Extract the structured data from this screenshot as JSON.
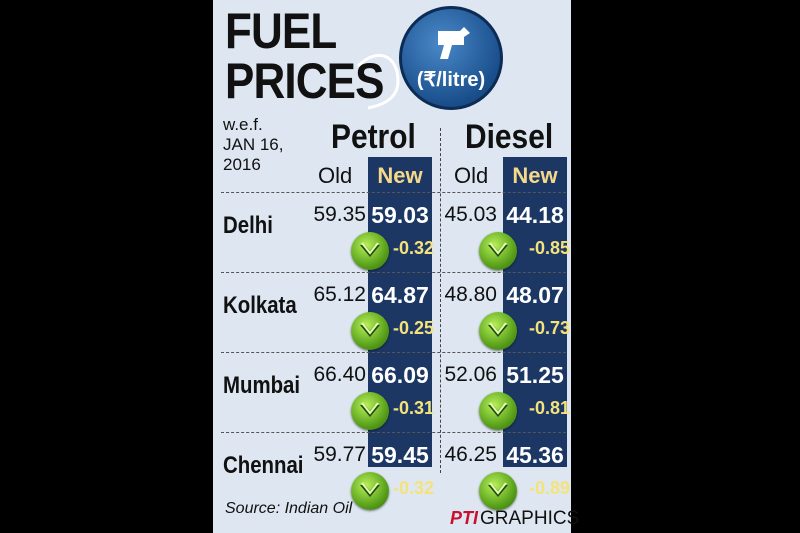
{
  "title_line1": "FUEL",
  "title_line2": "PRICES",
  "unit": "(₹/litre)",
  "effective_date": [
    "w.e.f.",
    "JAN 16,",
    "2016"
  ],
  "fuels": [
    {
      "name": "Petrol",
      "old_label": "Old",
      "new_label": "New"
    },
    {
      "name": "Diesel",
      "old_label": "Old",
      "new_label": "New"
    }
  ],
  "cities": [
    {
      "name": "Delhi",
      "petrol": {
        "old": "59.35",
        "new": "59.03",
        "change": "-0.32"
      },
      "diesel": {
        "old": "45.03",
        "new": "44.18",
        "change": "-0.85"
      }
    },
    {
      "name": "Kolkata",
      "petrol": {
        "old": "65.12",
        "new": "64.87",
        "change": "-0.25"
      },
      "diesel": {
        "old": "48.80",
        "new": "48.07",
        "change": "-0.73"
      }
    },
    {
      "name": "Mumbai",
      "petrol": {
        "old": "66.40",
        "new": "66.09",
        "change": "-0.31"
      },
      "diesel": {
        "old": "52.06",
        "new": "51.25",
        "change": "-0.81"
      }
    },
    {
      "name": "Chennai",
      "petrol": {
        "old": "59.77",
        "new": "59.45",
        "change": "-0.32"
      },
      "diesel": {
        "old": "46.25",
        "new": "45.36",
        "change": "-0.89"
      }
    }
  ],
  "source": "Source: Indian Oil",
  "credit": {
    "logo": "PTI",
    "label": "GRAPHICS"
  },
  "icons": {
    "badge": "fuel-nozzle-icon",
    "trend": "down-arrow-icon"
  },
  "colors": {
    "background": "#dde6f1",
    "new_column": "#1c3764",
    "change_text": "#f4e37b",
    "arrow_green": "#5aa21b"
  }
}
